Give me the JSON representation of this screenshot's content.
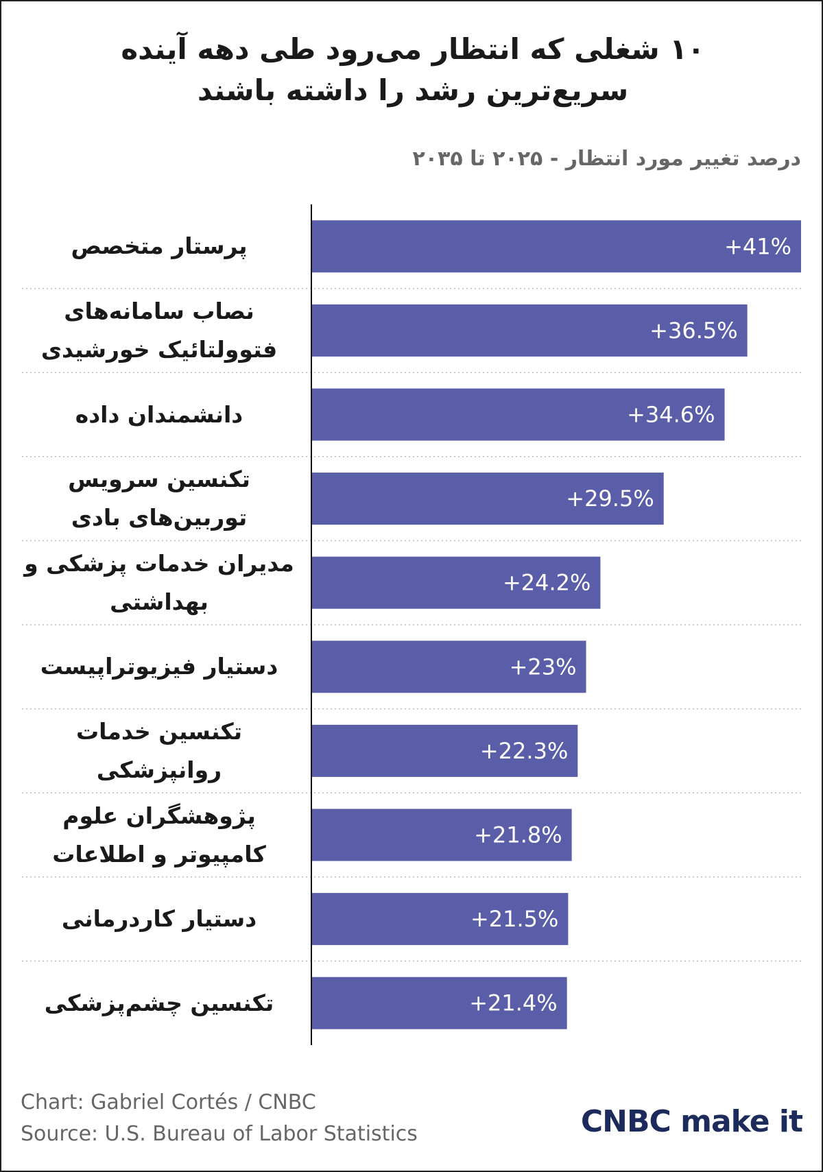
{
  "chart_data": {
    "type": "hbar",
    "title": "۱۰ شغلی که انتظار می‌رود طی دهه آینده سریع‌ترین رشد را داشته باشند",
    "subtitle": "درصد تغییر مورد انتظار - ۲۰۲۵ تا ۲۰۳۵",
    "categories": [
      "پرستار متخصص",
      "نصاب سامانه‌های فتوولتائیک خورشیدی",
      "دانشمندان داده",
      "تکنسین سرویس توربین‌های بادی",
      "مدیران خدمات پزشکی و بهداشتی",
      "دستیار فیزیوتراپیست",
      "تکنسین خدمات روانپزشکی",
      "پژوهشگران علوم کامپیوتر و اطلاعات",
      "دستیار کاردرمانی",
      "تکنسین چشم‌پزشکی"
    ],
    "values": [
      41,
      36.5,
      34.6,
      29.5,
      24.2,
      23,
      22.3,
      21.8,
      21.5,
      21.4
    ],
    "value_labels": [
      "+41%",
      "+36.5%",
      "+34.6%",
      "+29.5%",
      "+24.2%",
      "+23%",
      "+22.3%",
      "+21.8%",
      "+21.5%",
      "+21.4%"
    ],
    "color": "#5a5da8",
    "xlim": [
      0,
      41
    ],
    "credit": "Chart: Gabriel Cortés / CNBC",
    "source": "Source: U.S. Bureau of Labor Statistics",
    "logo": "CNBC make it"
  }
}
